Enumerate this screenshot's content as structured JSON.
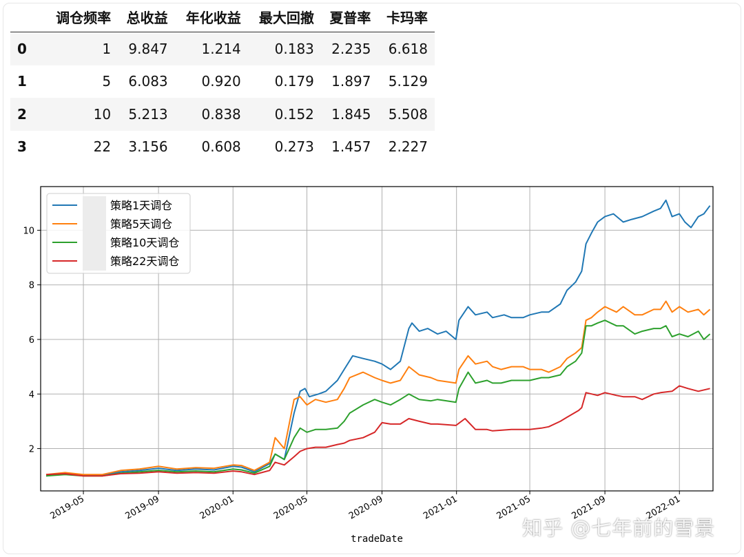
{
  "table": {
    "columns": [
      "调仓频率",
      "总收益",
      "年化收益",
      "最大回撤",
      "夏普率",
      "卡玛率"
    ],
    "rows": [
      {
        "index": "0",
        "values": [
          "1",
          "9.847",
          "1.214",
          "0.183",
          "2.235",
          "6.618"
        ]
      },
      {
        "index": "1",
        "values": [
          "5",
          "6.083",
          "0.920",
          "0.179",
          "1.897",
          "5.129"
        ]
      },
      {
        "index": "2",
        "values": [
          "10",
          "5.213",
          "0.838",
          "0.152",
          "1.845",
          "5.508"
        ]
      },
      {
        "index": "3",
        "values": [
          "22",
          "3.156",
          "0.608",
          "0.273",
          "1.457",
          "2.227"
        ]
      }
    ]
  },
  "chart_data": {
    "type": "line",
    "xlabel": "tradeDate",
    "ylabel": "",
    "x_range": [
      "2019-02-20",
      "2022-02-25"
    ],
    "ylim": [
      0.45,
      11.6
    ],
    "x_ticks": [
      "2019-05",
      "2019-09",
      "2020-01",
      "2020-05",
      "2020-09",
      "2021-01",
      "2021-05",
      "2021-09",
      "2022-01"
    ],
    "y_ticks": [
      2,
      4,
      6,
      8,
      10
    ],
    "grid": true,
    "legend_position": "top-left",
    "series": [
      {
        "name": "策略1天调仓",
        "color": "#1f77b4",
        "x": [
          "2019-03-01",
          "2019-04-01",
          "2019-05-01",
          "2019-06-01",
          "2019-07-01",
          "2019-08-01",
          "2019-09-01",
          "2019-10-01",
          "2019-11-01",
          "2019-12-01",
          "2020-01-01",
          "2020-01-15",
          "2020-02-05",
          "2020-03-01",
          "2020-03-10",
          "2020-03-25",
          "2020-04-10",
          "2020-04-20",
          "2020-04-28",
          "2020-05-05",
          "2020-05-20",
          "2020-06-01",
          "2020-06-20",
          "2020-07-01",
          "2020-07-15",
          "2020-08-01",
          "2020-08-20",
          "2020-09-01",
          "2020-09-15",
          "2020-10-01",
          "2020-10-15",
          "2020-10-20",
          "2020-11-01",
          "2020-11-15",
          "2020-12-01",
          "2020-12-15",
          "2020-12-31",
          "2021-01-05",
          "2021-01-20",
          "2021-02-01",
          "2021-02-20",
          "2021-03-01",
          "2021-03-20",
          "2021-04-01",
          "2021-04-20",
          "2021-05-01",
          "2021-05-20",
          "2021-06-01",
          "2021-06-20",
          "2021-07-01",
          "2021-07-15",
          "2021-07-25",
          "2021-08-01",
          "2021-08-10",
          "2021-08-20",
          "2021-09-01",
          "2021-09-15",
          "2021-10-01",
          "2021-10-15",
          "2021-11-01",
          "2021-11-20",
          "2021-12-01",
          "2021-12-10",
          "2021-12-20",
          "2022-01-01",
          "2022-01-10",
          "2022-01-20",
          "2022-02-01",
          "2022-02-10",
          "2022-02-20"
        ],
        "values": [
          1.0,
          1.08,
          1.02,
          1.02,
          1.15,
          1.2,
          1.28,
          1.2,
          1.25,
          1.22,
          1.35,
          1.32,
          1.15,
          1.45,
          1.8,
          1.6,
          3.3,
          4.1,
          4.2,
          3.9,
          4.0,
          4.1,
          4.5,
          4.9,
          5.4,
          5.3,
          5.2,
          5.1,
          4.9,
          5.2,
          6.4,
          6.6,
          6.3,
          6.4,
          6.2,
          6.3,
          6.0,
          6.7,
          7.2,
          6.9,
          7.0,
          6.8,
          6.9,
          6.8,
          6.8,
          6.9,
          7.0,
          7.0,
          7.3,
          7.8,
          8.1,
          8.5,
          9.5,
          9.9,
          10.3,
          10.5,
          10.6,
          10.3,
          10.4,
          10.5,
          10.7,
          10.8,
          11.1,
          10.5,
          10.6,
          10.3,
          10.1,
          10.5,
          10.6,
          10.9
        ]
      },
      {
        "name": "策略5天调仓",
        "color": "#ff7f0e",
        "x": [
          "2019-03-01",
          "2019-04-01",
          "2019-05-01",
          "2019-06-01",
          "2019-07-01",
          "2019-08-01",
          "2019-09-01",
          "2019-10-01",
          "2019-11-01",
          "2019-12-01",
          "2020-01-01",
          "2020-01-15",
          "2020-02-05",
          "2020-03-01",
          "2020-03-10",
          "2020-03-25",
          "2020-04-10",
          "2020-04-20",
          "2020-05-01",
          "2020-05-15",
          "2020-06-01",
          "2020-06-20",
          "2020-07-01",
          "2020-07-10",
          "2020-08-01",
          "2020-08-20",
          "2020-09-01",
          "2020-09-15",
          "2020-10-01",
          "2020-10-15",
          "2020-11-01",
          "2020-11-20",
          "2020-12-01",
          "2020-12-31",
          "2021-01-05",
          "2021-01-20",
          "2021-02-01",
          "2021-02-20",
          "2021-03-01",
          "2021-03-15",
          "2021-04-01",
          "2021-04-20",
          "2021-05-01",
          "2021-05-20",
          "2021-06-01",
          "2021-06-20",
          "2021-07-01",
          "2021-07-15",
          "2021-07-25",
          "2021-08-01",
          "2021-08-10",
          "2021-08-20",
          "2021-09-01",
          "2021-09-20",
          "2021-10-01",
          "2021-10-20",
          "2021-11-01",
          "2021-11-20",
          "2021-12-01",
          "2021-12-10",
          "2021-12-20",
          "2022-01-01",
          "2022-01-15",
          "2022-02-01",
          "2022-02-10",
          "2022-02-20"
        ],
        "values": [
          1.05,
          1.12,
          1.05,
          1.05,
          1.2,
          1.25,
          1.35,
          1.25,
          1.3,
          1.28,
          1.4,
          1.38,
          1.2,
          1.5,
          2.4,
          2.0,
          3.8,
          3.9,
          3.6,
          3.8,
          3.7,
          3.8,
          4.2,
          4.6,
          4.8,
          4.6,
          4.5,
          4.4,
          4.5,
          5.0,
          4.7,
          4.6,
          4.5,
          4.4,
          4.9,
          5.4,
          5.1,
          5.2,
          5.0,
          4.9,
          5.0,
          5.0,
          4.9,
          4.9,
          4.8,
          5.0,
          5.3,
          5.5,
          5.7,
          6.7,
          6.8,
          7.0,
          7.2,
          7.0,
          7.2,
          6.9,
          6.9,
          7.1,
          7.1,
          7.4,
          7.0,
          7.2,
          7.0,
          7.1,
          6.9,
          7.1
        ]
      },
      {
        "name": "策略10天调仓",
        "color": "#2ca02c",
        "x": [
          "2019-03-01",
          "2019-04-01",
          "2019-05-01",
          "2019-06-01",
          "2019-07-01",
          "2019-08-01",
          "2019-09-01",
          "2019-10-01",
          "2019-11-01",
          "2019-12-01",
          "2020-01-01",
          "2020-01-15",
          "2020-02-05",
          "2020-03-01",
          "2020-03-10",
          "2020-03-25",
          "2020-04-10",
          "2020-04-20",
          "2020-05-01",
          "2020-05-15",
          "2020-06-01",
          "2020-06-20",
          "2020-07-01",
          "2020-07-10",
          "2020-08-01",
          "2020-08-20",
          "2020-09-01",
          "2020-09-15",
          "2020-10-01",
          "2020-10-15",
          "2020-11-01",
          "2020-11-20",
          "2020-12-01",
          "2020-12-31",
          "2021-01-05",
          "2021-01-20",
          "2021-02-01",
          "2021-02-20",
          "2021-03-01",
          "2021-03-15",
          "2021-04-01",
          "2021-04-20",
          "2021-05-01",
          "2021-05-20",
          "2021-06-01",
          "2021-06-20",
          "2021-07-01",
          "2021-07-15",
          "2021-07-25",
          "2021-08-01",
          "2021-08-10",
          "2021-08-20",
          "2021-09-01",
          "2021-09-20",
          "2021-10-01",
          "2021-10-20",
          "2021-11-01",
          "2021-11-20",
          "2021-12-01",
          "2021-12-10",
          "2021-12-20",
          "2022-01-01",
          "2022-01-15",
          "2022-02-01",
          "2022-02-10",
          "2022-02-20"
        ],
        "values": [
          1.0,
          1.05,
          1.0,
          1.0,
          1.1,
          1.15,
          1.2,
          1.15,
          1.18,
          1.15,
          1.25,
          1.22,
          1.1,
          1.35,
          1.8,
          1.6,
          2.4,
          2.75,
          2.6,
          2.7,
          2.7,
          2.75,
          3.0,
          3.3,
          3.6,
          3.8,
          3.7,
          3.6,
          3.8,
          4.0,
          3.8,
          3.75,
          3.8,
          3.7,
          4.2,
          4.8,
          4.4,
          4.5,
          4.4,
          4.4,
          4.5,
          4.5,
          4.5,
          4.6,
          4.6,
          4.7,
          5.0,
          5.2,
          5.5,
          6.5,
          6.5,
          6.6,
          6.7,
          6.5,
          6.5,
          6.2,
          6.3,
          6.4,
          6.4,
          6.5,
          6.1,
          6.2,
          6.1,
          6.3,
          6.0,
          6.2
        ]
      },
      {
        "name": "策略22天调仓",
        "color": "#d62728",
        "x": [
          "2019-03-01",
          "2019-04-01",
          "2019-05-01",
          "2019-06-01",
          "2019-07-01",
          "2019-08-01",
          "2019-09-01",
          "2019-10-01",
          "2019-11-01",
          "2019-12-01",
          "2020-01-01",
          "2020-01-15",
          "2020-02-05",
          "2020-03-01",
          "2020-03-10",
          "2020-03-25",
          "2020-04-10",
          "2020-04-20",
          "2020-05-01",
          "2020-05-15",
          "2020-06-01",
          "2020-06-20",
          "2020-07-01",
          "2020-07-10",
          "2020-08-01",
          "2020-08-20",
          "2020-09-01",
          "2020-09-15",
          "2020-10-01",
          "2020-10-15",
          "2020-11-01",
          "2020-11-20",
          "2020-12-01",
          "2020-12-31",
          "2021-01-15",
          "2021-02-01",
          "2021-02-20",
          "2021-03-01",
          "2021-04-01",
          "2021-05-01",
          "2021-05-20",
          "2021-06-01",
          "2021-06-20",
          "2021-07-01",
          "2021-07-20",
          "2021-07-25",
          "2021-08-01",
          "2021-08-20",
          "2021-09-01",
          "2021-09-20",
          "2021-10-01",
          "2021-10-20",
          "2021-11-01",
          "2021-11-20",
          "2021-12-01",
          "2021-12-20",
          "2022-01-01",
          "2022-01-15",
          "2022-02-01",
          "2022-02-20"
        ],
        "values": [
          1.05,
          1.08,
          1.0,
          1.0,
          1.08,
          1.1,
          1.15,
          1.1,
          1.12,
          1.1,
          1.18,
          1.15,
          1.05,
          1.2,
          1.5,
          1.4,
          1.7,
          1.9,
          2.0,
          2.05,
          2.05,
          2.15,
          2.2,
          2.3,
          2.4,
          2.6,
          2.95,
          2.9,
          2.9,
          3.1,
          3.0,
          2.9,
          2.9,
          2.85,
          3.1,
          2.7,
          2.7,
          2.65,
          2.7,
          2.7,
          2.75,
          2.8,
          3.0,
          3.15,
          3.4,
          3.5,
          4.05,
          3.95,
          4.05,
          3.95,
          3.9,
          3.9,
          3.8,
          4.0,
          4.05,
          4.1,
          4.3,
          4.2,
          4.1,
          4.2
        ]
      }
    ]
  },
  "watermark": {
    "text": "知乎 @七年前的雪景"
  }
}
